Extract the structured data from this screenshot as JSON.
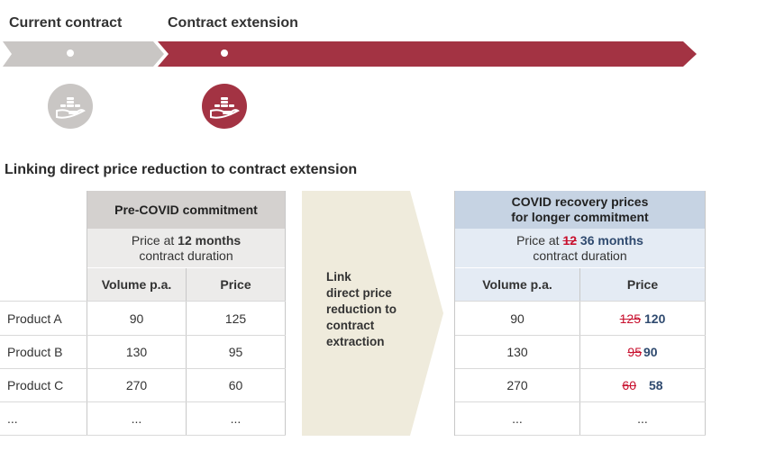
{
  "timeline": {
    "current_label": "Current contract",
    "extension_label": "Contract extension",
    "colors": {
      "current": "#c9c6c4",
      "extension": "#a33343"
    },
    "icons": [
      "coins-hand-icon",
      "coins-hand-icon"
    ]
  },
  "section_title": "Linking direct price reduction to contract extension",
  "pre_covid": {
    "title": "Pre-COVID commitment",
    "subtitle_prefix": "Price at ",
    "subtitle_bold": "12 months",
    "subtitle_suffix": "contract duration",
    "col_volume": "Volume p.a.",
    "col_price": "Price"
  },
  "arrow": {
    "text_lines": [
      "Link",
      "direct price",
      "reduction to",
      "contract",
      "extraction"
    ],
    "color": "#efebdc"
  },
  "recovery": {
    "title_line1": "COVID recovery prices",
    "title_line2": "for longer commitment",
    "subtitle_prefix": "Price at ",
    "subtitle_struck": "12",
    "subtitle_bold": "36 months",
    "subtitle_suffix": "contract duration",
    "col_volume": "Volume p.a.",
    "col_price": "Price"
  },
  "rows": [
    {
      "label": "Product A",
      "volume": "90",
      "price": "125",
      "old_price": "125",
      "new_price": "120"
    },
    {
      "label": "Product B",
      "volume": "130",
      "price": "95",
      "old_price": "95",
      "new_price": "90"
    },
    {
      "label": "Product C",
      "volume": "270",
      "price": "60",
      "old_price": "60",
      "new_price": "58"
    },
    {
      "label": "...",
      "volume": "...",
      "price": "...",
      "old_price": "",
      "new_price": "..."
    }
  ]
}
